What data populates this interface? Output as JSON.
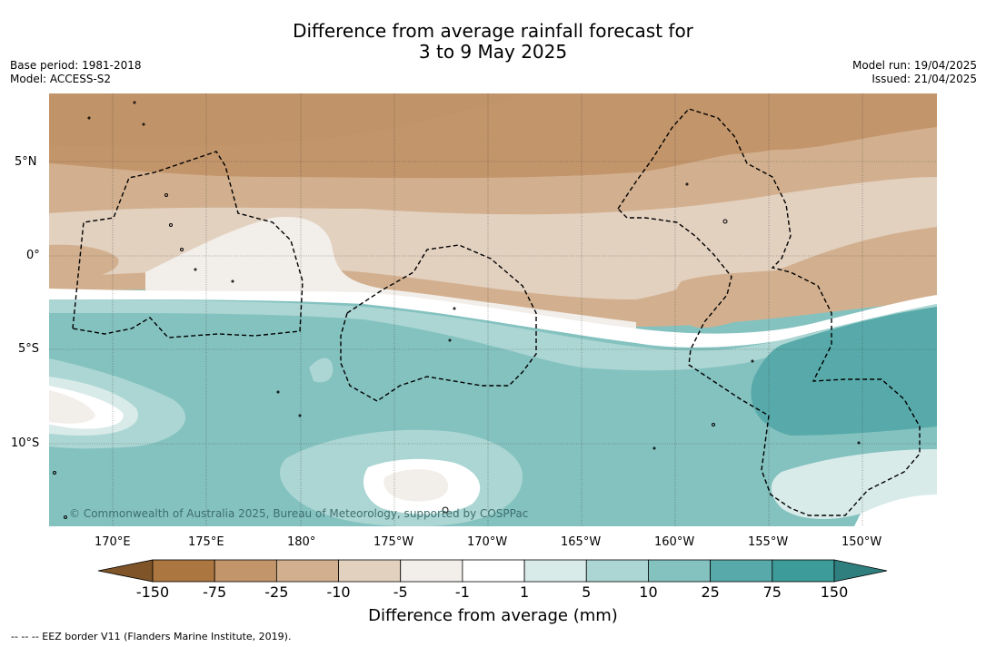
{
  "header": {
    "title_line1": "Difference from average rainfall forecast for",
    "title_line2": "3 to 9 May 2025",
    "base_period": "Base period: 1981-2018",
    "model": "Model: ACCESS-S2",
    "model_run": "Model run: 19/04/2025",
    "issued": "Issued: 21/04/2025"
  },
  "map": {
    "lat_labels": [
      "5°N",
      "0°",
      "5°S",
      "10°S"
    ],
    "lon_labels": [
      "170°E",
      "175°E",
      "180°",
      "175°W",
      "170°W",
      "165°W",
      "160°W",
      "155°W",
      "150°W"
    ],
    "copyright": "© Commonwealth of Australia 2025, Bureau of Meteorology, supported by COSPPac"
  },
  "colorbar": {
    "title": "Difference from average (mm)",
    "ticks": [
      "-150",
      "-75",
      "-25",
      "-10",
      "-5",
      "-1",
      "1",
      "5",
      "10",
      "25",
      "75",
      "150"
    ],
    "colors": [
      "#7e5428",
      "#ab7640",
      "#c3956b",
      "#d2b08f",
      "#e3d1c0",
      "#f2eeea",
      "#ffffff",
      "#d8ebe9",
      "#acd6d3",
      "#84c2c0",
      "#58aaaa",
      "#3d9b9a",
      "#2f7f7f"
    ]
  },
  "footnote": "--  --  -- EEZ border V11 (Flanders Marine Institute, 2019)."
}
